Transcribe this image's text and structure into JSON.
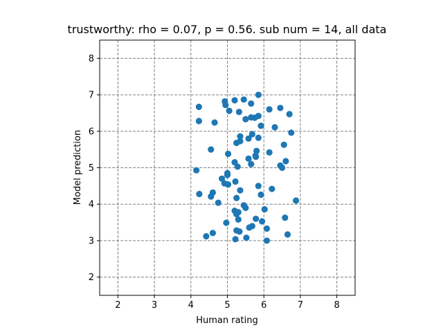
{
  "chart_data": {
    "type": "scatter",
    "title": "trustworthy: rho = 0.07, p = 0.56. sub num = 14, all data",
    "xlabel": "Human rating",
    "ylabel": "Model prediction",
    "xlim": [
      1.5,
      8.5
    ],
    "ylim": [
      1.5,
      8.5
    ],
    "xticks": [
      2,
      3,
      4,
      5,
      6,
      7,
      8
    ],
    "yticks": [
      2,
      3,
      4,
      5,
      6,
      7,
      8
    ],
    "grid": true,
    "grid_style": "dashed",
    "colors": {
      "marker": "#1f77b4",
      "grid": "#808080",
      "axes": "#000000"
    },
    "series": [
      {
        "points": [
          [
            4.93,
            6.82
          ],
          [
            5.2,
            6.85
          ],
          [
            5.45,
            6.87
          ],
          [
            5.85,
            7.0
          ],
          [
            5.65,
            6.76
          ],
          [
            4.22,
            6.67
          ],
          [
            4.95,
            6.72
          ],
          [
            5.05,
            6.56
          ],
          [
            5.32,
            6.53
          ],
          [
            6.15,
            6.6
          ],
          [
            6.45,
            6.64
          ],
          [
            6.7,
            6.47
          ],
          [
            5.5,
            6.33
          ],
          [
            5.65,
            6.38
          ],
          [
            5.75,
            6.37
          ],
          [
            5.85,
            6.42
          ],
          [
            4.22,
            6.28
          ],
          [
            4.65,
            6.24
          ],
          [
            5.92,
            6.15
          ],
          [
            6.3,
            6.11
          ],
          [
            6.75,
            5.96
          ],
          [
            5.68,
            5.92
          ],
          [
            5.35,
            5.86
          ],
          [
            5.58,
            5.8
          ],
          [
            5.85,
            5.82
          ],
          [
            5.35,
            5.73
          ],
          [
            5.25,
            5.68
          ],
          [
            6.55,
            5.63
          ],
          [
            4.55,
            5.5
          ],
          [
            5.8,
            5.46
          ],
          [
            6.15,
            5.42
          ],
          [
            5.02,
            5.38
          ],
          [
            5.77,
            5.33
          ],
          [
            5.78,
            5.3
          ],
          [
            5.58,
            5.25
          ],
          [
            5.2,
            5.15
          ],
          [
            5.65,
            5.1
          ],
          [
            6.6,
            5.18
          ],
          [
            5.28,
            5.03
          ],
          [
            6.45,
            5.06
          ],
          [
            6.5,
            5.0
          ],
          [
            4.15,
            4.93
          ],
          [
            5.0,
            4.85
          ],
          [
            5.0,
            4.8
          ],
          [
            4.85,
            4.7
          ],
          [
            4.92,
            4.57
          ],
          [
            5.02,
            4.54
          ],
          [
            5.22,
            4.62
          ],
          [
            5.85,
            4.5
          ],
          [
            6.22,
            4.42
          ],
          [
            5.35,
            4.38
          ],
          [
            4.6,
            4.32
          ],
          [
            4.23,
            4.28
          ],
          [
            4.55,
            4.21
          ],
          [
            5.92,
            4.26
          ],
          [
            5.25,
            4.17
          ],
          [
            4.75,
            4.04
          ],
          [
            6.88,
            4.1
          ],
          [
            5.45,
            3.97
          ],
          [
            5.5,
            3.9
          ],
          [
            6.02,
            3.86
          ],
          [
            5.2,
            3.82
          ],
          [
            5.3,
            3.78
          ],
          [
            5.25,
            3.73
          ],
          [
            6.58,
            3.63
          ],
          [
            5.3,
            3.58
          ],
          [
            5.78,
            3.6
          ],
          [
            5.95,
            3.53
          ],
          [
            4.97,
            3.49
          ],
          [
            5.68,
            3.4
          ],
          [
            5.6,
            3.36
          ],
          [
            6.08,
            3.33
          ],
          [
            5.25,
            3.28
          ],
          [
            5.33,
            3.25
          ],
          [
            4.6,
            3.21
          ],
          [
            6.65,
            3.17
          ],
          [
            4.42,
            3.12
          ],
          [
            5.52,
            3.08
          ],
          [
            5.22,
            3.04
          ],
          [
            6.08,
            3.0
          ]
        ]
      }
    ]
  }
}
